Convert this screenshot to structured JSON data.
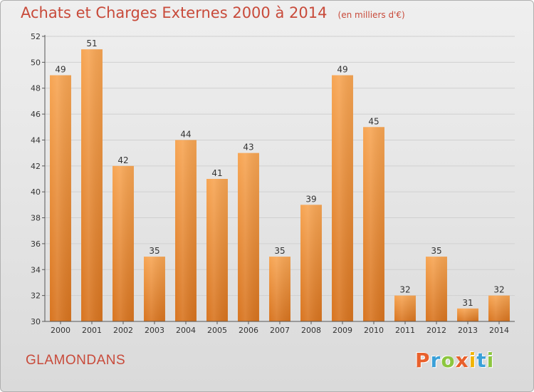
{
  "header": {
    "title": "Achats et Charges Externes 2000 à 2014",
    "unit": "(en milliers d'€)"
  },
  "footer": {
    "commune": "GLAMONDANS",
    "logo_text": "Proxiti",
    "logo_colors": [
      "#e8602c",
      "#3aa0d8",
      "#8cc63f",
      "#e8602c",
      "#f2b400",
      "#3aa0d8",
      "#8cc63f"
    ]
  },
  "colors": {
    "bar_top": "#f7a553",
    "bar_bottom": "#d8741f",
    "axis": "#555555",
    "grid": "#d0d0d0",
    "title": "#c84a3a"
  },
  "chart_data": {
    "type": "bar",
    "title": "Achats et Charges Externes 2000 à 2014",
    "subtitle": "(en milliers d'€)",
    "xlabel": "",
    "ylabel": "",
    "categories": [
      "2000",
      "2001",
      "2002",
      "2003",
      "2004",
      "2005",
      "2006",
      "2007",
      "2008",
      "2009",
      "2010",
      "2011",
      "2012",
      "2013",
      "2014"
    ],
    "values": [
      49,
      51,
      42,
      35,
      44,
      41,
      43,
      35,
      39,
      49,
      45,
      32,
      35,
      31,
      32
    ],
    "ylim": [
      30,
      52
    ],
    "yticks": [
      30,
      32,
      34,
      36,
      38,
      40,
      42,
      44,
      46,
      48,
      50,
      52
    ],
    "grid": true,
    "data_labels": true,
    "legend": "none"
  }
}
